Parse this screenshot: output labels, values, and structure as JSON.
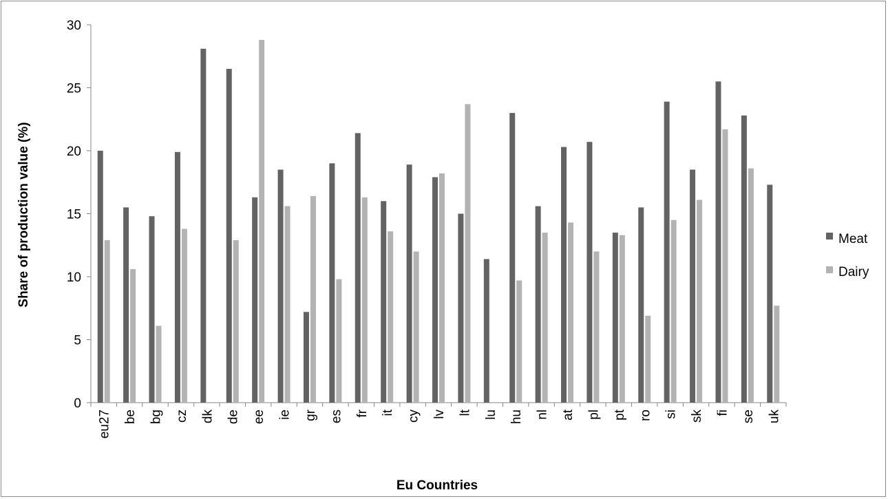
{
  "chart_data": {
    "type": "bar",
    "title": "",
    "xlabel": "Eu Countries",
    "ylabel": "Share of production value (%)",
    "ylim": [
      0,
      30
    ],
    "yticks": [
      0,
      5,
      10,
      15,
      20,
      25,
      30
    ],
    "grid": false,
    "legend_position": "right",
    "categories": [
      "eu27",
      "be",
      "bg",
      "cz",
      "dk",
      "de",
      "ee",
      "ie",
      "gr",
      "es",
      "fr",
      "it",
      "cy",
      "lv",
      "lt",
      "lu",
      "hu",
      "nl",
      "at",
      "pl",
      "pt",
      "ro",
      "si",
      "sk",
      "fi",
      "se",
      "uk"
    ],
    "series": [
      {
        "name": "Meat",
        "color": "#636363",
        "values": [
          20.0,
          15.5,
          14.8,
          19.9,
          28.1,
          26.5,
          16.3,
          18.5,
          7.2,
          19.0,
          21.4,
          16.0,
          18.9,
          17.9,
          15.0,
          11.4,
          23.0,
          15.6,
          20.3,
          20.7,
          13.5,
          15.5,
          23.9,
          18.5,
          25.5,
          22.8,
          17.3
        ]
      },
      {
        "name": "Dairy",
        "color": "#b3b3b3",
        "values": [
          12.9,
          10.6,
          6.1,
          13.8,
          0,
          12.9,
          28.8,
          15.6,
          16.4,
          9.8,
          16.3,
          13.6,
          12.0,
          18.2,
          23.7,
          0,
          9.7,
          13.5,
          14.3,
          12.0,
          13.3,
          6.9,
          14.5,
          16.1,
          21.7,
          18.6,
          7.7
        ]
      }
    ]
  }
}
